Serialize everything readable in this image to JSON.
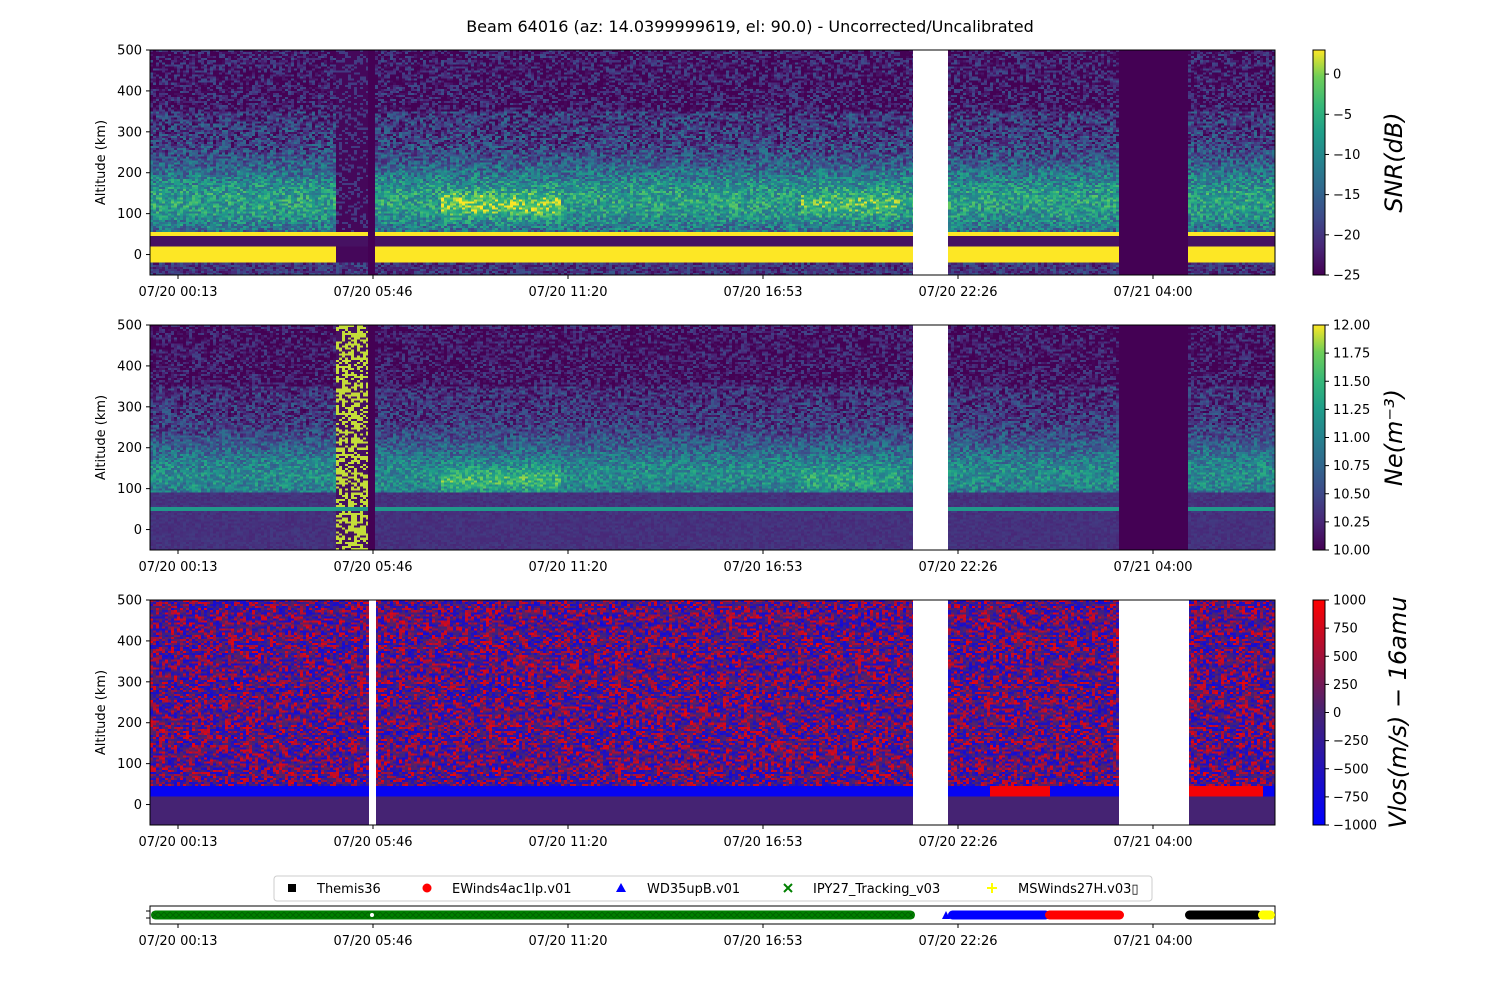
{
  "figure": {
    "title": "Beam 64016 (az: 14.0399999619, el: 90.0) - Uncorrected/Uncalibrated"
  },
  "chart_data": [
    {
      "type": "heatmap",
      "id": "snr",
      "ylabel": "Altitude (km)",
      "ylim": [
        -50,
        500
      ],
      "yticks": [
        0,
        100,
        200,
        300,
        400,
        500
      ],
      "xticks": [
        "07/20 00:13",
        "07/20 05:46",
        "07/20 11:20",
        "07/20 16:53",
        "07/20 22:26",
        "07/21 04:00"
      ],
      "colormap": "viridis",
      "colorbar": {
        "label": "SNR(dB)",
        "range": [
          -25,
          3
        ],
        "ticks": [
          "0",
          "−5",
          "−10",
          "−15",
          "−20",
          "−25"
        ],
        "tick_values": [
          0,
          -5,
          -10,
          -15,
          -20,
          -25
        ]
      }
    },
    {
      "type": "heatmap",
      "id": "ne",
      "ylabel": "Altitude (km)",
      "ylim": [
        -50,
        500
      ],
      "yticks": [
        0,
        100,
        200,
        300,
        400,
        500
      ],
      "xticks": [
        "07/20 00:13",
        "07/20 05:46",
        "07/20 11:20",
        "07/20 16:53",
        "07/20 22:26",
        "07/21 04:00"
      ],
      "colormap": "viridis",
      "colorbar": {
        "label": "Ne(m⁻³)",
        "range": [
          10.0,
          12.0
        ],
        "ticks": [
          "12.00",
          "11.75",
          "11.50",
          "11.25",
          "11.00",
          "10.75",
          "10.50",
          "10.25",
          "10.00"
        ],
        "tick_values": [
          12.0,
          11.75,
          11.5,
          11.25,
          11.0,
          10.75,
          10.5,
          10.25,
          10.0
        ]
      }
    },
    {
      "type": "heatmap",
      "id": "vlos",
      "ylabel": "Altitude (km)",
      "ylim": [
        -50,
        500
      ],
      "yticks": [
        0,
        100,
        200,
        300,
        400,
        500
      ],
      "xticks": [
        "07/20 00:13",
        "07/20 05:46",
        "07/20 11:20",
        "07/20 16:53",
        "07/20 22:26",
        "07/21 04:00"
      ],
      "colormap": "bwr",
      "colorbar": {
        "label": "Vlos(m/s) − 16amu",
        "range": [
          -1000,
          1000
        ],
        "ticks": [
          "1000",
          "750",
          "500",
          "250",
          "0",
          "−250",
          "−500",
          "−750",
          "−1000"
        ],
        "tick_values": [
          1000,
          750,
          500,
          250,
          0,
          -250,
          -500,
          -750,
          -1000
        ]
      }
    },
    {
      "type": "scatter",
      "id": "modes",
      "xticks": [
        "07/20 00:13",
        "07/20 05:46",
        "07/20 11:20",
        "07/20 16:53",
        "07/20 22:26",
        "07/21 04:00"
      ],
      "legend": [
        {
          "name": "Themis36",
          "marker": "square",
          "color": "#000000"
        },
        {
          "name": "EWinds4ac1lp.v01",
          "marker": "circle",
          "color": "#ff0000"
        },
        {
          "name": "WD35upB.v01",
          "marker": "triangle",
          "color": "#0000ff"
        },
        {
          "name": "IPY27_Tracking_v03",
          "marker": "x",
          "color": "#008000"
        },
        {
          "name": "MSWinds27H.v03▯",
          "marker": "plus",
          "color": "#ffff00"
        }
      ],
      "legend_placement": "top-center"
    }
  ],
  "colors": {
    "viridis_low": "#440154",
    "viridis_high": "#fde725",
    "bwr_low": "#0000ff",
    "bwr_mid": "#452373",
    "bwr_high": "#ff0000"
  }
}
